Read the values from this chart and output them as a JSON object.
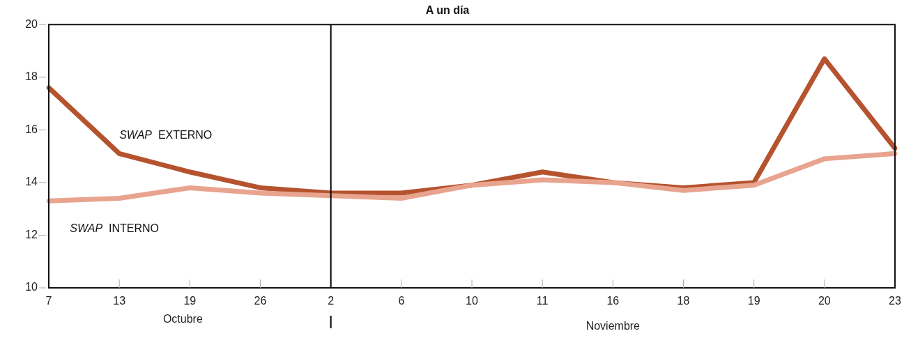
{
  "chart_data": {
    "type": "line",
    "title": "A un día",
    "categories": [
      "7",
      "13",
      "19",
      "26",
      "2",
      "6",
      "10",
      "11",
      "16",
      "18",
      "19",
      "20",
      "23"
    ],
    "series": [
      {
        "name": "SWAP EXTERNO",
        "color": "#b5532f",
        "values": [
          17.6,
          15.1,
          14.4,
          13.8,
          13.6,
          13.6,
          13.9,
          14.4,
          14.0,
          13.8,
          14.0,
          18.7,
          15.3
        ]
      },
      {
        "name": "SWAP INTERNO",
        "color": "#e8a48e",
        "values": [
          13.3,
          13.4,
          13.8,
          13.6,
          13.5,
          13.4,
          13.9,
          14.1,
          14.0,
          13.7,
          13.9,
          14.9,
          15.1
        ]
      }
    ],
    "ylim": [
      10,
      20
    ],
    "yticks": [
      10,
      12,
      14,
      16,
      18,
      20
    ],
    "grid": false,
    "legend": false,
    "marker": "none",
    "line_style": "solid",
    "ref_lines": [
      {
        "axis": "x",
        "value": "2",
        "color": "#000000"
      }
    ],
    "annotations": [
      "Octubre",
      "Noviembre"
    ]
  }
}
